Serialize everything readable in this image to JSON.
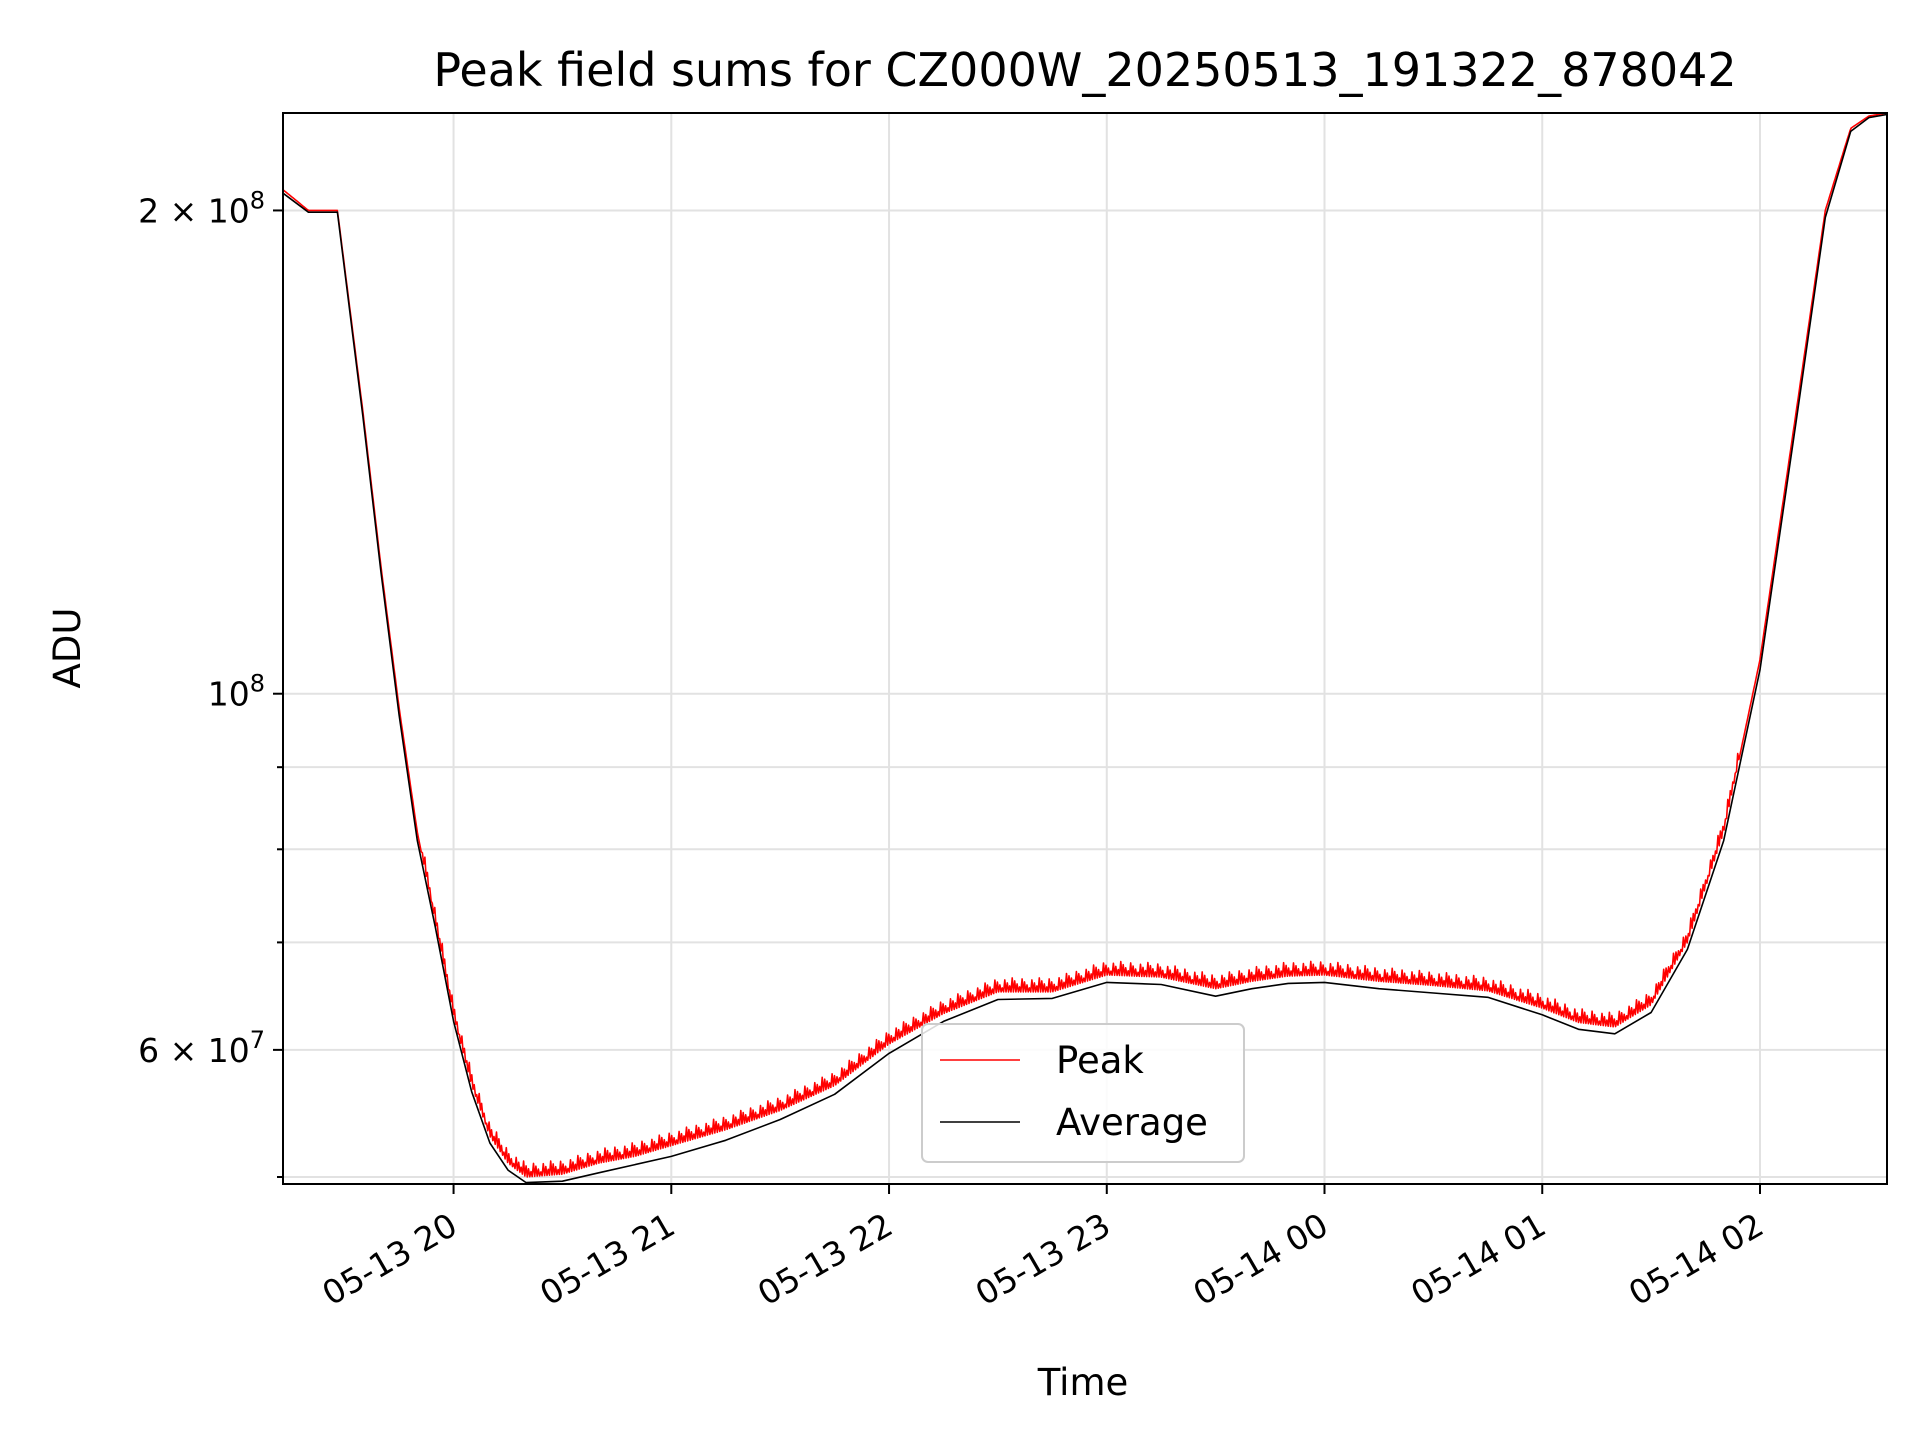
{
  "chart_data": {
    "type": "line",
    "title": "Peak field sums for CZ000W_20250513_191322_878042",
    "xlabel": "Time",
    "ylabel": "ADU",
    "y_scale": "log",
    "grid": true,
    "legend_position": "lower center",
    "xlim": [
      "2025-05-13 19:13",
      "2025-05-14 02:35"
    ],
    "ylim": [
      49500000,
      230000000
    ],
    "x_ticks": [
      {
        "value": "2025-05-13 20:00",
        "label": "05-13 20"
      },
      {
        "value": "2025-05-13 21:00",
        "label": "05-13 21"
      },
      {
        "value": "2025-05-13 22:00",
        "label": "05-13 22"
      },
      {
        "value": "2025-05-13 23:00",
        "label": "05-13 23"
      },
      {
        "value": "2025-05-14 00:00",
        "label": "05-14 00"
      },
      {
        "value": "2025-05-14 01:00",
        "label": "05-14 01"
      },
      {
        "value": "2025-05-14 02:00",
        "label": "05-14 02"
      }
    ],
    "y_major_ticks": [
      {
        "value": 60000000,
        "base": "6 × 10",
        "exp": "7"
      },
      {
        "value": 100000000,
        "base": "10",
        "exp": "8"
      },
      {
        "value": 200000000,
        "base": "2 × 10",
        "exp": "8"
      }
    ],
    "y_minor_ticks": [
      50000000,
      70000000,
      80000000,
      90000000
    ],
    "series": [
      {
        "name": "Peak",
        "color": "#ff0000",
        "noisy": true,
        "x": [
          "2025-05-13 19:13",
          "2025-05-13 19:20",
          "2025-05-13 19:28",
          "2025-05-13 19:35",
          "2025-05-13 19:40",
          "2025-05-13 19:45",
          "2025-05-13 19:50",
          "2025-05-13 19:55",
          "2025-05-13 20:00",
          "2025-05-13 20:05",
          "2025-05-13 20:10",
          "2025-05-13 20:15",
          "2025-05-13 20:20",
          "2025-05-13 20:30",
          "2025-05-13 20:40",
          "2025-05-13 20:50",
          "2025-05-13 21:00",
          "2025-05-13 21:15",
          "2025-05-13 21:30",
          "2025-05-13 21:45",
          "2025-05-13 22:00",
          "2025-05-13 22:15",
          "2025-05-13 22:30",
          "2025-05-13 22:45",
          "2025-05-13 23:00",
          "2025-05-13 23:15",
          "2025-05-13 23:30",
          "2025-05-13 23:40",
          "2025-05-13 23:50",
          "2025-05-14 00:00",
          "2025-05-14 00:15",
          "2025-05-14 00:30",
          "2025-05-14 00:45",
          "2025-05-14 01:00",
          "2025-05-14 01:10",
          "2025-05-14 01:20",
          "2025-05-14 01:30",
          "2025-05-14 01:40",
          "2025-05-14 01:50",
          "2025-05-14 02:00",
          "2025-05-14 02:10",
          "2025-05-14 02:18",
          "2025-05-14 02:25",
          "2025-05-14 02:30",
          "2025-05-14 02:35"
        ],
        "values": [
          206000000,
          200000000,
          200000000,
          150000000,
          120000000,
          98000000,
          82000000,
          72000000,
          63000000,
          57000000,
          53000000,
          51000000,
          50000000,
          50200000,
          51000000,
          51500000,
          52300000,
          53500000,
          55000000,
          57000000,
          60500000,
          63200000,
          65200000,
          65200000,
          66800000,
          66600000,
          65500000,
          66200000,
          66700000,
          66800000,
          66200000,
          65800000,
          65300000,
          63700000,
          62400000,
          62000000,
          64000000,
          70000000,
          82000000,
          105000000,
          150000000,
          200000000,
          225000000,
          229000000,
          230000000
        ]
      },
      {
        "name": "Average",
        "color": "#000000",
        "noisy": false,
        "x": [
          "2025-05-13 19:13",
          "2025-05-13 19:20",
          "2025-05-13 19:28",
          "2025-05-13 19:35",
          "2025-05-13 19:40",
          "2025-05-13 19:45",
          "2025-05-13 19:50",
          "2025-05-13 19:55",
          "2025-05-13 20:00",
          "2025-05-13 20:05",
          "2025-05-13 20:10",
          "2025-05-13 20:15",
          "2025-05-13 20:20",
          "2025-05-13 20:30",
          "2025-05-13 20:40",
          "2025-05-13 20:50",
          "2025-05-13 21:00",
          "2025-05-13 21:15",
          "2025-05-13 21:30",
          "2025-05-13 21:45",
          "2025-05-13 22:00",
          "2025-05-13 22:15",
          "2025-05-13 22:30",
          "2025-05-13 22:45",
          "2025-05-13 23:00",
          "2025-05-13 23:15",
          "2025-05-13 23:30",
          "2025-05-13 23:40",
          "2025-05-13 23:50",
          "2025-05-14 00:00",
          "2025-05-14 00:15",
          "2025-05-14 00:30",
          "2025-05-14 00:45",
          "2025-05-14 01:00",
          "2025-05-14 01:10",
          "2025-05-14 01:20",
          "2025-05-14 01:30",
          "2025-05-14 01:40",
          "2025-05-14 01:50",
          "2025-05-14 02:00",
          "2025-05-14 02:10",
          "2025-05-14 02:18",
          "2025-05-14 02:25",
          "2025-05-14 02:30",
          "2025-05-14 02:35"
        ],
        "values": [
          205000000,
          199500000,
          199500000,
          149000000,
          119000000,
          97000000,
          81000000,
          71500000,
          62500000,
          56500000,
          52500000,
          50500000,
          49600000,
          49700000,
          50300000,
          50900000,
          51500000,
          52700000,
          54300000,
          56300000,
          59700000,
          62500000,
          64500000,
          64600000,
          66100000,
          65900000,
          64800000,
          65500000,
          66000000,
          66100000,
          65500000,
          65100000,
          64700000,
          63100000,
          61800000,
          61400000,
          63300000,
          69300000,
          81000000,
          103500000,
          148000000,
          198000000,
          224000000,
          228500000,
          229500000
        ]
      }
    ]
  }
}
